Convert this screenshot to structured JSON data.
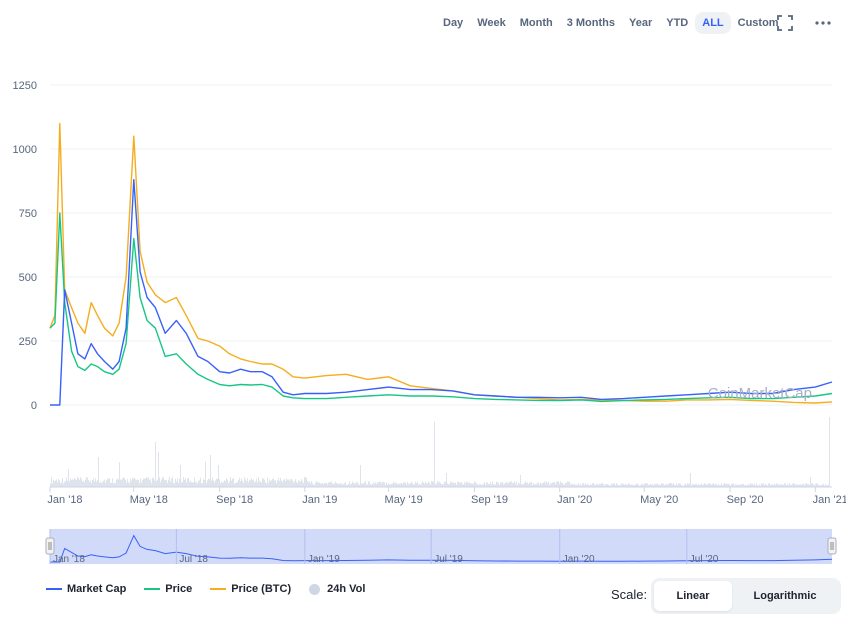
{
  "toolbar": {
    "ranges": [
      "Day",
      "Week",
      "Month",
      "3 Months",
      "Year",
      "YTD",
      "ALL",
      "Custom"
    ],
    "active": "ALL"
  },
  "watermark": "CoinMarketCap",
  "legend": {
    "market_cap": "Market Cap",
    "price": "Price",
    "price_btc": "Price (BTC)",
    "vol": "24h Vol"
  },
  "scale": {
    "label": "Scale:",
    "linear": "Linear",
    "logarithmic": "Logarithmic",
    "active": "Linear"
  },
  "colors": {
    "market_cap": "#3861fb",
    "price": "#16c784",
    "price_btc": "#f5ad1f",
    "vol": "#cfd6e4",
    "navigator": "#c9d3f7"
  },
  "chart_data": {
    "type": "line",
    "yticks": [
      0,
      250,
      500,
      750,
      1000,
      1250
    ],
    "ylim": [
      0,
      1250
    ],
    "xlim": [
      "2018-01-01",
      "2021-01-25"
    ],
    "xticks": [
      "Jan '18",
      "May '18",
      "Sep '18",
      "Jan '19",
      "May '19",
      "Sep '19",
      "Jan '20",
      "May '20",
      "Sep '20",
      "Jan '21"
    ],
    "navigator_ticks": [
      "Jan '18",
      "Jul '18",
      "Jan '19",
      "Jul '19",
      "Jan '20",
      "Jul '20"
    ],
    "x": [
      "2018-01-01",
      "2018-01-08",
      "2018-01-15",
      "2018-01-22",
      "2018-02-01",
      "2018-02-10",
      "2018-02-20",
      "2018-03-01",
      "2018-03-10",
      "2018-03-20",
      "2018-04-01",
      "2018-04-10",
      "2018-04-20",
      "2018-05-01",
      "2018-05-10",
      "2018-05-20",
      "2018-06-01",
      "2018-06-15",
      "2018-07-01",
      "2018-07-15",
      "2018-08-01",
      "2018-08-15",
      "2018-09-01",
      "2018-09-15",
      "2018-10-01",
      "2018-10-15",
      "2018-11-01",
      "2018-11-15",
      "2018-12-01",
      "2018-12-15",
      "2019-01-01",
      "2019-02-01",
      "2019-03-01",
      "2019-04-01",
      "2019-05-01",
      "2019-06-01",
      "2019-07-01",
      "2019-08-01",
      "2019-09-01",
      "2019-10-01",
      "2019-11-01",
      "2019-12-01",
      "2020-01-01",
      "2020-02-01",
      "2020-03-01",
      "2020-04-01",
      "2020-05-01",
      "2020-06-01",
      "2020-07-01",
      "2020-08-01",
      "2020-09-01",
      "2020-10-01",
      "2020-11-01",
      "2020-12-01",
      "2021-01-01",
      "2021-01-25"
    ],
    "series": [
      {
        "name": "Market Cap",
        "values": [
          0,
          0,
          0,
          450,
          320,
          200,
          180,
          240,
          200,
          170,
          140,
          170,
          300,
          880,
          520,
          420,
          380,
          280,
          330,
          280,
          190,
          170,
          130,
          125,
          140,
          130,
          130,
          110,
          50,
          40,
          45,
          45,
          50,
          60,
          70,
          60,
          60,
          55,
          40,
          35,
          30,
          30,
          28,
          30,
          22,
          25,
          30,
          35,
          40,
          45,
          50,
          45,
          45,
          60,
          70,
          90
        ]
      },
      {
        "name": "Price",
        "values": [
          300,
          320,
          750,
          400,
          210,
          150,
          135,
          160,
          150,
          130,
          120,
          140,
          240,
          650,
          420,
          330,
          300,
          190,
          200,
          160,
          120,
          100,
          80,
          75,
          80,
          78,
          80,
          70,
          35,
          28,
          25,
          25,
          30,
          35,
          40,
          35,
          35,
          32,
          25,
          22,
          20,
          18,
          17,
          20,
          14,
          17,
          20,
          22,
          25,
          28,
          30,
          25,
          25,
          30,
          35,
          45
        ]
      },
      {
        "name": "Price (BTC)",
        "values": [
          300,
          350,
          1100,
          450,
          380,
          320,
          280,
          400,
          350,
          300,
          270,
          320,
          500,
          1050,
          600,
          480,
          430,
          400,
          420,
          350,
          260,
          250,
          230,
          200,
          180,
          170,
          160,
          160,
          140,
          110,
          105,
          115,
          120,
          100,
          110,
          75,
          65,
          55,
          40,
          35,
          30,
          25,
          20,
          22,
          20,
          18,
          15,
          15,
          20,
          20,
          22,
          18,
          15,
          10,
          8,
          12
        ]
      }
    ]
  }
}
